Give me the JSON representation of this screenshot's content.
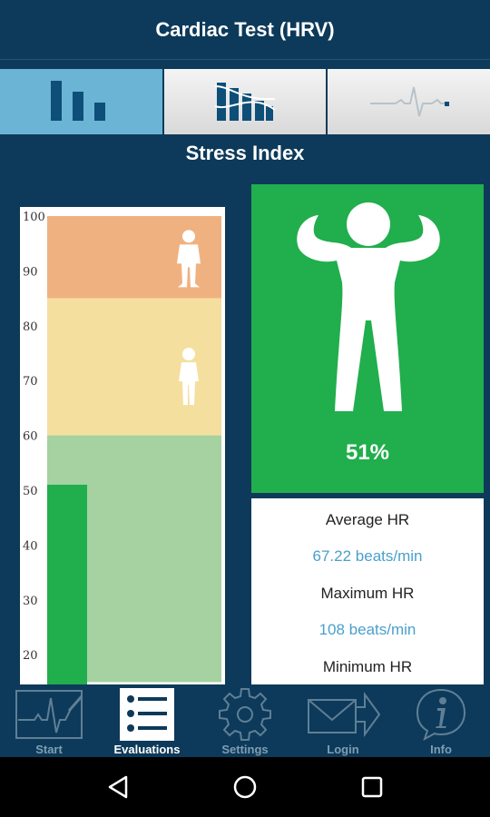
{
  "app": {
    "title": "Cardiac Test (HRV)"
  },
  "tabs": [
    {
      "name": "bar-chart",
      "active": true
    },
    {
      "name": "histogram",
      "active": false
    },
    {
      "name": "ecg-trace",
      "active": false
    }
  ],
  "section": {
    "title": "Stress Index"
  },
  "chart_data": {
    "type": "bar",
    "categories": [
      ""
    ],
    "values": [
      51
    ],
    "ylim": [
      15,
      100
    ],
    "yticks": [
      "100",
      "90",
      "80",
      "70",
      "60",
      "50",
      "40",
      "30",
      "20"
    ],
    "zones": [
      {
        "from": 85,
        "to": 100,
        "color": "#f0b180"
      },
      {
        "from": 60,
        "to": 85,
        "color": "#f5df9e"
      },
      {
        "from": 15,
        "to": 60,
        "color": "#a5d2a0"
      }
    ],
    "bar_color": "#21ae4d",
    "grid": false,
    "legend": "none"
  },
  "stress": {
    "value": "51%",
    "icon": "strong-person-icon"
  },
  "hr": {
    "average_label": "Average HR",
    "average_value": "67.22 beats/min",
    "maximum_label": "Maximum HR",
    "maximum_value": "108 beats/min",
    "minimum_label": "Minimum HR"
  },
  "nav": [
    {
      "label": "Start",
      "icon": "ecg-start-icon",
      "active": false
    },
    {
      "label": "Evaluations",
      "icon": "list-icon",
      "active": true
    },
    {
      "label": "Settings",
      "icon": "gear-icon",
      "active": false
    },
    {
      "label": "Login",
      "icon": "envelope-arrow-icon",
      "active": false
    },
    {
      "label": "Info",
      "icon": "info-icon",
      "active": false
    }
  ],
  "colors": {
    "background": "#0d3a5a",
    "accent_blue": "#6cb4d6",
    "value_blue": "#4a9fcb",
    "green": "#21ae4d"
  }
}
